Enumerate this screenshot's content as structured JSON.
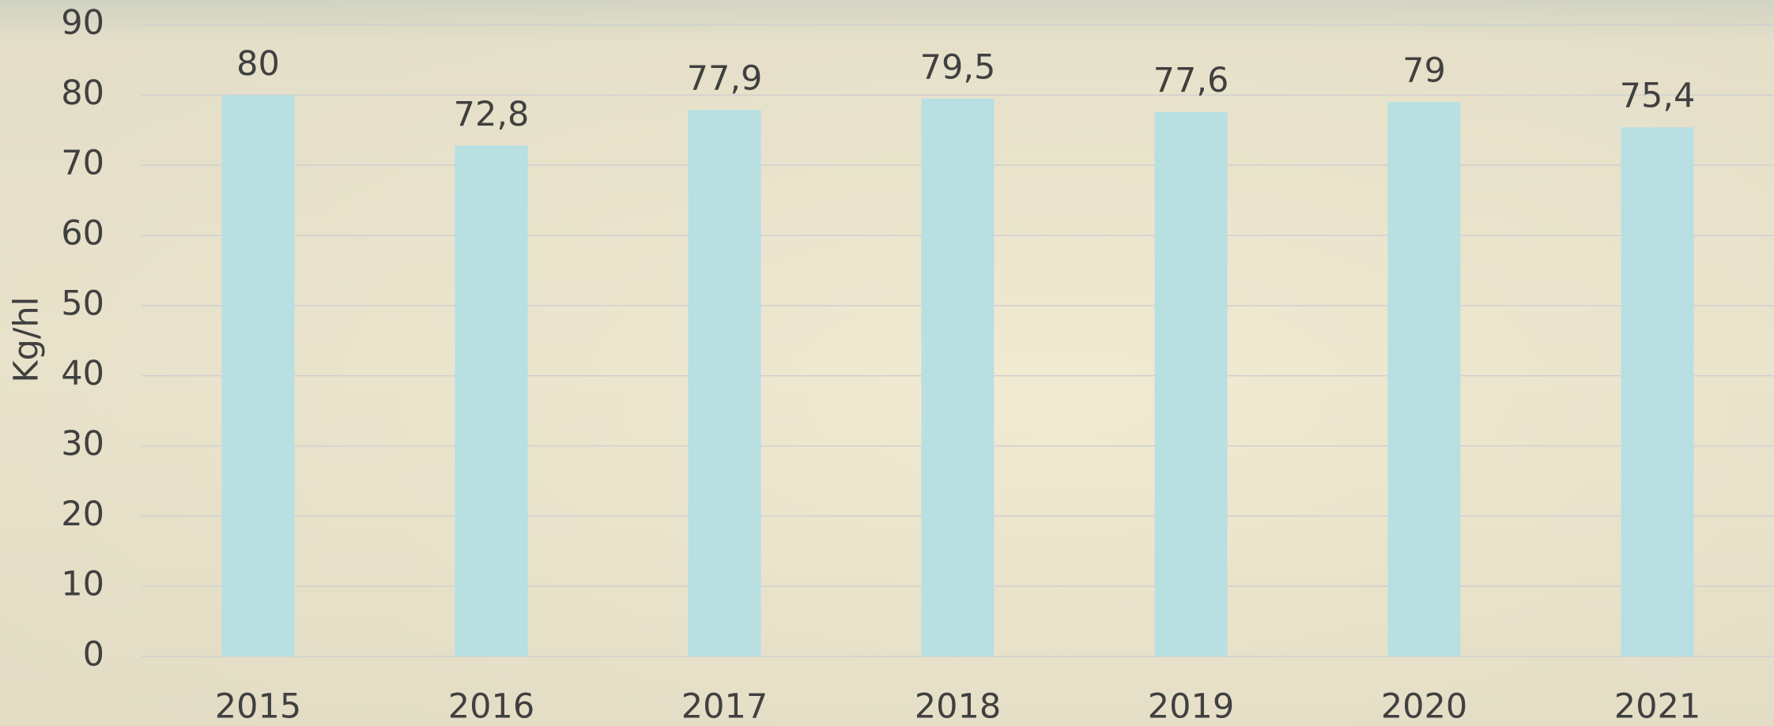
{
  "chart_data": {
    "type": "bar",
    "y_label": "Kg/hl",
    "categories": [
      "2015",
      "2016",
      "2017",
      "2018",
      "2019",
      "2020",
      "2021"
    ],
    "values": [
      80,
      72.8,
      77.9,
      79.5,
      77.6,
      79,
      75.4
    ],
    "value_labels": [
      "80",
      "72,8",
      "77,9",
      "79,5",
      "77,6",
      "79",
      "75,4"
    ],
    "color": "#b8dfe2",
    "ylim": [
      0,
      90
    ],
    "yticks": [
      0,
      10,
      20,
      30,
      40,
      50,
      60,
      70,
      80,
      90
    ],
    "grid": true
  }
}
